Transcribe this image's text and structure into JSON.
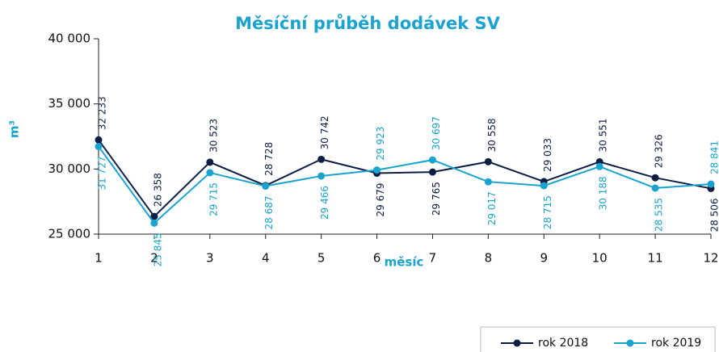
{
  "chart_data": {
    "type": "line",
    "title": "Měsíční průběh dodávek SV",
    "x_label": "měsíc",
    "y_label": "m³",
    "categories": [
      "1",
      "2",
      "3",
      "4",
      "5",
      "6",
      "7",
      "8",
      "9",
      "10",
      "11",
      "12"
    ],
    "series": [
      {
        "name": "rok 2018",
        "color": "#0d1f45",
        "values": [
          32233,
          26358,
          30523,
          28728,
          30742,
          29679,
          29765,
          30558,
          29033,
          30551,
          29326,
          28506
        ],
        "value_labels": [
          "32 233",
          "26 358",
          "30 523",
          "28 728",
          "30 742",
          "29 679",
          "29 765",
          "30 558",
          "29 033",
          "30 551",
          "29 326",
          "28 506"
        ]
      },
      {
        "name": "rok 2019",
        "color": "#1ba3d0",
        "values": [
          31727,
          25845,
          29715,
          28687,
          29466,
          29923,
          30697,
          29017,
          28715,
          30188,
          28535,
          28841
        ],
        "value_labels": [
          "31 727",
          "25 845",
          "29 715",
          "28 687",
          "29 466",
          "29 923",
          "30 697",
          "29 017",
          "28 715",
          "30 188",
          "28 535",
          "28 841"
        ]
      }
    ],
    "ylim": [
      25000,
      40000
    ],
    "yticks": [
      {
        "value": 25000,
        "label": "25 000"
      },
      {
        "value": 30000,
        "label": "30 000"
      },
      {
        "value": 35000,
        "label": "35 000"
      },
      {
        "value": 40000,
        "label": "40 000"
      }
    ],
    "legend": "bottom-right"
  }
}
